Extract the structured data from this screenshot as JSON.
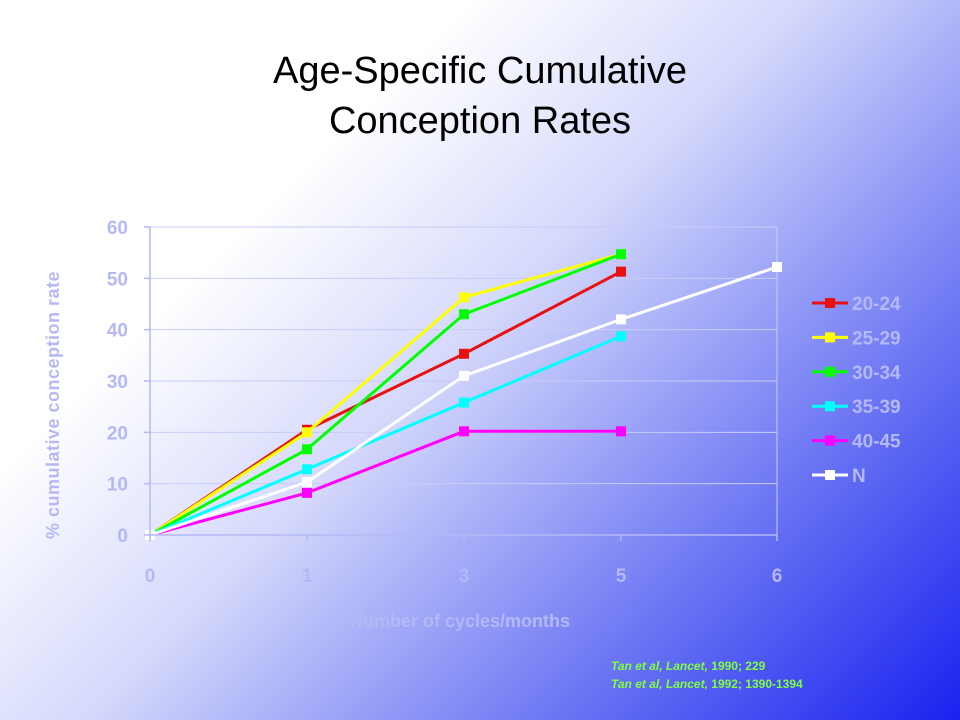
{
  "slide": {
    "title_line1": "Age-Specific Cumulative",
    "title_line2": "Conception Rates"
  },
  "citation": {
    "line1_authors": "Tan et al,",
    "line1_journal": "Lancet,",
    "line1_rest": "1990; 229",
    "line2_authors": "Tan et al,",
    "line2_journal": "Lancet,",
    "line2_rest": "1992; 1390-1394"
  },
  "chart_data": {
    "type": "line",
    "title": "",
    "xlabel": "Number of cycles/months",
    "ylabel": "% cumulative conception rate",
    "x_ticks": [
      "0",
      "1",
      "3",
      "5",
      "6"
    ],
    "y_ticks": [
      "0",
      "10",
      "20",
      "30",
      "40",
      "50",
      "60"
    ],
    "ylim": [
      0,
      60
    ],
    "grid": "horizontal",
    "legend_position": "right",
    "series": [
      {
        "name": "20-24",
        "color": "#e81010",
        "points": [
          [
            0,
            0
          ],
          [
            1,
            20.5
          ],
          [
            3,
            35.3
          ],
          [
            5,
            51.3
          ]
        ]
      },
      {
        "name": "25-29",
        "color": "#ffff00",
        "points": [
          [
            0,
            0
          ],
          [
            1,
            20
          ],
          [
            3,
            46.3
          ],
          [
            5,
            54.7
          ]
        ]
      },
      {
        "name": "30-34",
        "color": "#00ff00",
        "points": [
          [
            0,
            0
          ],
          [
            1,
            16.7
          ],
          [
            3,
            43
          ],
          [
            5,
            54.7
          ]
        ]
      },
      {
        "name": "35-39",
        "color": "#00ffff",
        "points": [
          [
            0,
            0
          ],
          [
            1,
            12.8
          ],
          [
            3,
            25.8
          ],
          [
            5,
            38.7
          ]
        ]
      },
      {
        "name": "40-45",
        "color": "#ff00ff",
        "points": [
          [
            0,
            0
          ],
          [
            1,
            8.2
          ],
          [
            3,
            20.2
          ],
          [
            5,
            20.2
          ]
        ]
      },
      {
        "name": "N",
        "color": "#ffffff",
        "points": [
          [
            0,
            0
          ],
          [
            1,
            10.3
          ],
          [
            3,
            31
          ],
          [
            5,
            42
          ],
          [
            6,
            52.2
          ]
        ]
      }
    ]
  }
}
